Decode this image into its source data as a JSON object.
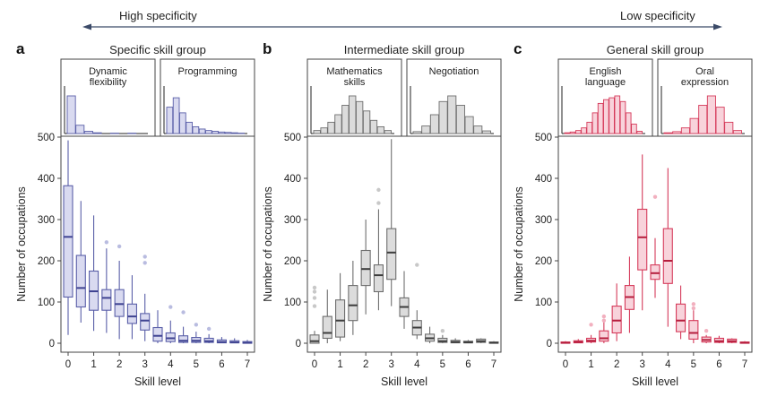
{
  "header": {
    "left_label": "High specificity",
    "right_label": "Low specificity"
  },
  "chart_data": [
    {
      "type": "boxplot",
      "letter": "a",
      "title": "Specific skill group",
      "xlabel": "Skill level",
      "ylabel": "Number of occupations",
      "ylim": [
        0,
        500
      ],
      "yticks": [
        0,
        100,
        200,
        300,
        400,
        500
      ],
      "xticks": [
        "0",
        "1",
        "2",
        "3",
        "4",
        "5",
        "6",
        "7"
      ],
      "color": {
        "stroke": "#5a5fa8",
        "fill": "#d9daf0",
        "median": "#3f4391",
        "outlier": "#b9bce0"
      },
      "insets": [
        {
          "label": "Dynamic flexibility",
          "bars": [
            1.0,
            0.22,
            0.06,
            0.02,
            0.0,
            0.01,
            0.0,
            0.01,
            0.0
          ]
        },
        {
          "label": "Programming",
          "bars": [
            0.7,
            0.95,
            0.55,
            0.3,
            0.18,
            0.12,
            0.08,
            0.06,
            0.04,
            0.03,
            0.02,
            0.01
          ]
        }
      ],
      "boxes": [
        {
          "x": 0,
          "whisker_low": 20,
          "q1": 112,
          "median": 258,
          "q3": 382,
          "whisker_high": 492,
          "outliers": []
        },
        {
          "x": 0.5,
          "whisker_low": 50,
          "q1": 88,
          "median": 134,
          "q3": 213,
          "whisker_high": 345,
          "outliers": []
        },
        {
          "x": 1,
          "whisker_low": 30,
          "q1": 80,
          "median": 126,
          "q3": 175,
          "whisker_high": 310,
          "outliers": []
        },
        {
          "x": 1.5,
          "whisker_low": 25,
          "q1": 80,
          "median": 110,
          "q3": 130,
          "whisker_high": 230,
          "outliers": [
            245
          ]
        },
        {
          "x": 2,
          "whisker_low": 10,
          "q1": 65,
          "median": 95,
          "q3": 130,
          "whisker_high": 200,
          "outliers": [
            235
          ]
        },
        {
          "x": 2.5,
          "whisker_low": 10,
          "q1": 48,
          "median": 65,
          "q3": 95,
          "whisker_high": 165,
          "outliers": []
        },
        {
          "x": 3,
          "whisker_low": 5,
          "q1": 32,
          "median": 55,
          "q3": 72,
          "whisker_high": 120,
          "outliers": [
            195,
            210
          ]
        },
        {
          "x": 3.5,
          "whisker_low": 0,
          "q1": 5,
          "median": 18,
          "q3": 38,
          "whisker_high": 80,
          "outliers": []
        },
        {
          "x": 4,
          "whisker_low": 0,
          "q1": 4,
          "median": 12,
          "q3": 25,
          "whisker_high": 55,
          "outliers": [
            88
          ]
        },
        {
          "x": 4.5,
          "whisker_low": 0,
          "q1": 2,
          "median": 6,
          "q3": 18,
          "whisker_high": 40,
          "outliers": [
            75
          ]
        },
        {
          "x": 5,
          "whisker_low": 0,
          "q1": 2,
          "median": 6,
          "q3": 14,
          "whisker_high": 28,
          "outliers": [
            45
          ]
        },
        {
          "x": 5.5,
          "whisker_low": 0,
          "q1": 2,
          "median": 5,
          "q3": 12,
          "whisker_high": 22,
          "outliers": [
            35
          ]
        },
        {
          "x": 6,
          "whisker_low": 0,
          "q1": 1,
          "median": 3,
          "q3": 8,
          "whisker_high": 15,
          "outliers": []
        },
        {
          "x": 6.5,
          "whisker_low": 0,
          "q1": 1,
          "median": 2,
          "q3": 6,
          "whisker_high": 12,
          "outliers": []
        },
        {
          "x": 7,
          "whisker_low": 0,
          "q1": 0,
          "median": 1,
          "q3": 4,
          "whisker_high": 8,
          "outliers": []
        }
      ]
    },
    {
      "type": "boxplot",
      "letter": "b",
      "title": "Intermediate skill group",
      "xlabel": "Skill level",
      "ylabel": "Number of occupations",
      "ylim": [
        0,
        500
      ],
      "yticks": [
        0,
        100,
        200,
        300,
        400,
        500
      ],
      "xticks": [
        "0",
        "1",
        "2",
        "3",
        "4",
        "5",
        "6",
        "7"
      ],
      "color": {
        "stroke": "#6e6e6e",
        "fill": "#dcdcdc",
        "median": "#3c3c3c",
        "outlier": "#c8c8c8"
      },
      "insets": [
        {
          "label": "Mathematics skills",
          "bars": [
            0.08,
            0.15,
            0.3,
            0.5,
            0.75,
            1.0,
            0.85,
            0.6,
            0.35,
            0.18,
            0.08
          ]
        },
        {
          "label": "Negotiation",
          "bars": [
            0.05,
            0.2,
            0.5,
            0.85,
            1.0,
            0.75,
            0.45,
            0.2,
            0.07
          ]
        }
      ],
      "boxes": [
        {
          "x": 0,
          "whisker_low": 0,
          "q1": 0,
          "median": 5,
          "q3": 20,
          "whisker_high": 30,
          "outliers": [
            90,
            110,
            125,
            135
          ]
        },
        {
          "x": 0.5,
          "whisker_low": 0,
          "q1": 12,
          "median": 25,
          "q3": 65,
          "whisker_high": 130,
          "outliers": []
        },
        {
          "x": 1,
          "whisker_low": 5,
          "q1": 15,
          "median": 55,
          "q3": 105,
          "whisker_high": 170,
          "outliers": []
        },
        {
          "x": 1.5,
          "whisker_low": 20,
          "q1": 55,
          "median": 92,
          "q3": 140,
          "whisker_high": 200,
          "outliers": []
        },
        {
          "x": 2,
          "whisker_low": 70,
          "q1": 140,
          "median": 180,
          "q3": 225,
          "whisker_high": 300,
          "outliers": []
        },
        {
          "x": 2.5,
          "whisker_low": 80,
          "q1": 125,
          "median": 165,
          "q3": 190,
          "whisker_high": 325,
          "outliers": [
            340,
            372
          ]
        },
        {
          "x": 3,
          "whisker_low": 90,
          "q1": 155,
          "median": 220,
          "q3": 278,
          "whisker_high": 495,
          "outliers": []
        },
        {
          "x": 3.5,
          "whisker_low": 35,
          "q1": 65,
          "median": 88,
          "q3": 110,
          "whisker_high": 175,
          "outliers": []
        },
        {
          "x": 4,
          "whisker_low": 10,
          "q1": 20,
          "median": 38,
          "q3": 55,
          "whisker_high": 80,
          "outliers": [
            190
          ]
        },
        {
          "x": 4.5,
          "whisker_low": 0,
          "q1": 5,
          "median": 12,
          "q3": 22,
          "whisker_high": 40,
          "outliers": []
        },
        {
          "x": 5,
          "whisker_low": 0,
          "q1": 2,
          "median": 5,
          "q3": 12,
          "whisker_high": 20,
          "outliers": [
            30
          ]
        },
        {
          "x": 5.5,
          "whisker_low": 0,
          "q1": 1,
          "median": 3,
          "q3": 7,
          "whisker_high": 12,
          "outliers": []
        },
        {
          "x": 6,
          "whisker_low": 0,
          "q1": 1,
          "median": 2,
          "q3": 5,
          "whisker_high": 8,
          "outliers": []
        },
        {
          "x": 6.5,
          "whisker_low": 0,
          "q1": 2,
          "median": 5,
          "q3": 10,
          "whisker_high": 12,
          "outliers": []
        },
        {
          "x": 7,
          "whisker_low": 0,
          "q1": 0,
          "median": 1,
          "q3": 3,
          "whisker_high": 5,
          "outliers": []
        }
      ]
    },
    {
      "type": "boxplot",
      "letter": "c",
      "title": "General skill group",
      "xlabel": "Skill level",
      "ylabel": "Number of occupations",
      "ylim": [
        0,
        500
      ],
      "yticks": [
        0,
        100,
        200,
        300,
        400,
        500
      ],
      "xticks": [
        "0",
        "1",
        "2",
        "3",
        "4",
        "5",
        "6",
        "7"
      ],
      "color": {
        "stroke": "#d53a5a",
        "fill": "#f8d3db",
        "median": "#b51e3d",
        "outlier": "#f2b0bf"
      },
      "insets": [
        {
          "label": "English language",
          "bars": [
            0.02,
            0.04,
            0.08,
            0.15,
            0.3,
            0.55,
            0.8,
            0.9,
            0.95,
            1.0,
            0.85,
            0.55,
            0.25,
            0.06
          ]
        },
        {
          "label": "Oral expression",
          "bars": [
            0.02,
            0.05,
            0.15,
            0.4,
            0.75,
            1.0,
            0.7,
            0.3,
            0.08
          ]
        }
      ],
      "boxes": [
        {
          "x": 0,
          "whisker_low": 0,
          "q1": 0,
          "median": 1,
          "q3": 3,
          "whisker_high": 5,
          "outliers": []
        },
        {
          "x": 0.5,
          "whisker_low": 0,
          "q1": 1,
          "median": 3,
          "q3": 6,
          "whisker_high": 10,
          "outliers": []
        },
        {
          "x": 1,
          "whisker_low": 0,
          "q1": 3,
          "median": 6,
          "q3": 12,
          "whisker_high": 20,
          "outliers": [
            45
          ]
        },
        {
          "x": 1.5,
          "whisker_low": 0,
          "q1": 5,
          "median": 12,
          "q3": 30,
          "whisker_high": 55,
          "outliers": [
            55,
            65
          ]
        },
        {
          "x": 2,
          "whisker_low": 5,
          "q1": 25,
          "median": 55,
          "q3": 90,
          "whisker_high": 145,
          "outliers": []
        },
        {
          "x": 2.5,
          "whisker_low": 25,
          "q1": 82,
          "median": 112,
          "q3": 140,
          "whisker_high": 210,
          "outliers": []
        },
        {
          "x": 3,
          "whisker_low": 80,
          "q1": 178,
          "median": 257,
          "q3": 325,
          "whisker_high": 458,
          "outliers": []
        },
        {
          "x": 3.5,
          "whisker_low": 110,
          "q1": 155,
          "median": 170,
          "q3": 190,
          "whisker_high": 255,
          "outliers": [
            355
          ]
        },
        {
          "x": 4,
          "whisker_low": 40,
          "q1": 145,
          "median": 200,
          "q3": 278,
          "whisker_high": 425,
          "outliers": []
        },
        {
          "x": 4.5,
          "whisker_low": 10,
          "q1": 28,
          "median": 55,
          "q3": 95,
          "whisker_high": 140,
          "outliers": []
        },
        {
          "x": 5,
          "whisker_low": 0,
          "q1": 10,
          "median": 25,
          "q3": 55,
          "whisker_high": 80,
          "outliers": [
            85,
            95
          ]
        },
        {
          "x": 5.5,
          "whisker_low": 0,
          "q1": 3,
          "median": 8,
          "q3": 15,
          "whisker_high": 20,
          "outliers": [
            30
          ]
        },
        {
          "x": 6,
          "whisker_low": 0,
          "q1": 2,
          "median": 5,
          "q3": 12,
          "whisker_high": 18,
          "outliers": []
        },
        {
          "x": 6.5,
          "whisker_low": 0,
          "q1": 2,
          "median": 5,
          "q3": 10,
          "whisker_high": 12,
          "outliers": []
        },
        {
          "x": 7,
          "whisker_low": 0,
          "q1": 0,
          "median": 1,
          "q3": 3,
          "whisker_high": 5,
          "outliers": []
        }
      ]
    }
  ]
}
